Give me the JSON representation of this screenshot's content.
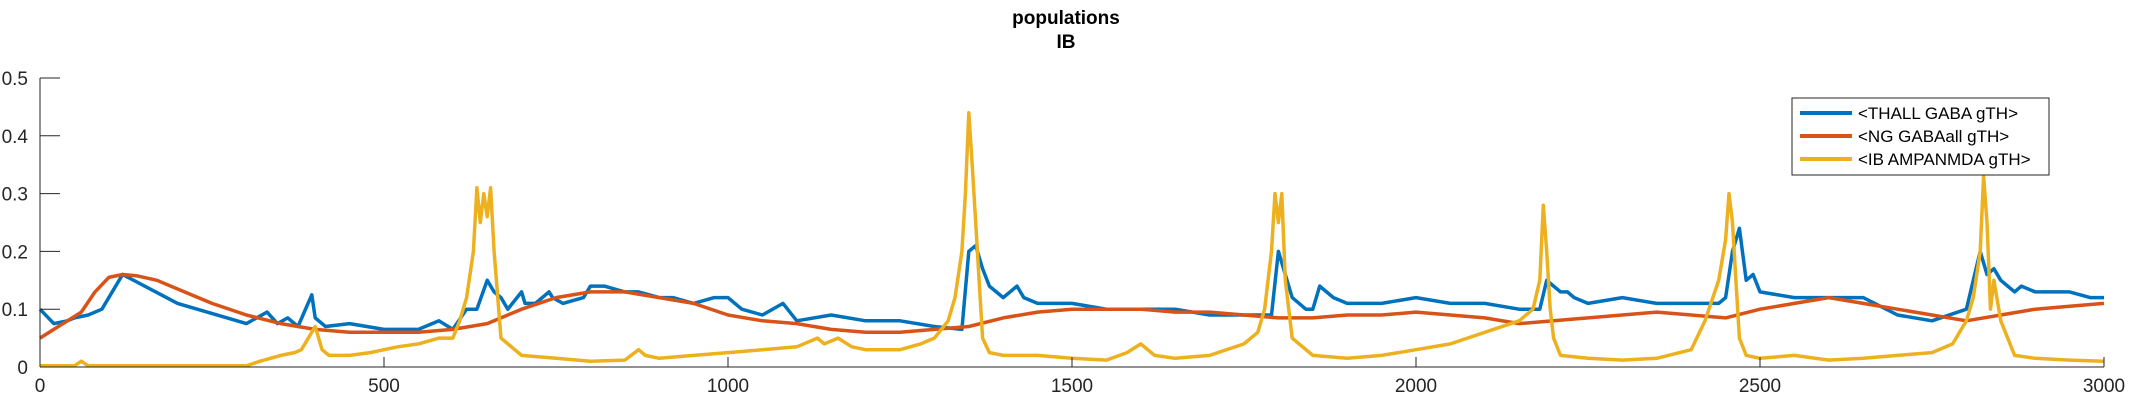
{
  "chart_data": {
    "type": "line",
    "title": "populations",
    "subtitle": "IB",
    "xlabel": "",
    "ylabel": "",
    "xlim": [
      0,
      3000
    ],
    "ylim": [
      0,
      0.5
    ],
    "x_ticks": [
      0,
      500,
      1000,
      1500,
      2000,
      2500,
      3000
    ],
    "y_ticks": [
      0,
      0.1,
      0.2,
      0.3,
      0.4,
      0.5
    ],
    "y_tick_labels": [
      "0",
      "0.1",
      "0.2",
      "0.3",
      "0.4",
      "0.5"
    ],
    "grid": false,
    "legend_position": "top-right",
    "series": [
      {
        "name": "<THALL GABA gTH>",
        "color": "#0072BD",
        "x": [
          0,
          20,
          40,
          50,
          70,
          90,
          120,
          200,
          300,
          330,
          345,
          360,
          375,
          395,
          400,
          415,
          450,
          500,
          550,
          580,
          600,
          620,
          635,
          650,
          660,
          670,
          680,
          700,
          705,
          720,
          740,
          745,
          760,
          790,
          800,
          820,
          850,
          870,
          900,
          920,
          950,
          980,
          1000,
          1020,
          1050,
          1080,
          1100,
          1150,
          1200,
          1250,
          1300,
          1340,
          1350,
          1360,
          1370,
          1380,
          1390,
          1400,
          1410,
          1420,
          1430,
          1450,
          1480,
          1500,
          1550,
          1600,
          1650,
          1700,
          1750,
          1790,
          1800,
          1820,
          1840,
          1850,
          1860,
          1880,
          1900,
          1950,
          2000,
          2050,
          2100,
          2150,
          2170,
          2180,
          2190,
          2200,
          2210,
          2220,
          2230,
          2250,
          2300,
          2350,
          2400,
          2440,
          2450,
          2460,
          2470,
          2480,
          2490,
          2500,
          2550,
          2600,
          2650,
          2700,
          2750,
          2800,
          2810,
          2820,
          2830,
          2840,
          2850,
          2860,
          2870,
          2880,
          2900,
          2950,
          2980,
          3000
        ],
        "y": [
          0.1,
          0.075,
          0.08,
          0.085,
          0.09,
          0.1,
          0.16,
          0.11,
          0.075,
          0.095,
          0.075,
          0.085,
          0.07,
          0.125,
          0.085,
          0.07,
          0.075,
          0.065,
          0.065,
          0.08,
          0.065,
          0.1,
          0.1,
          0.15,
          0.13,
          0.12,
          0.1,
          0.13,
          0.11,
          0.11,
          0.13,
          0.12,
          0.11,
          0.12,
          0.14,
          0.14,
          0.13,
          0.13,
          0.12,
          0.12,
          0.11,
          0.12,
          0.12,
          0.1,
          0.09,
          0.11,
          0.08,
          0.09,
          0.08,
          0.08,
          0.07,
          0.065,
          0.2,
          0.21,
          0.17,
          0.14,
          0.13,
          0.12,
          0.13,
          0.14,
          0.12,
          0.11,
          0.11,
          0.11,
          0.1,
          0.1,
          0.1,
          0.09,
          0.09,
          0.09,
          0.2,
          0.12,
          0.1,
          0.1,
          0.14,
          0.12,
          0.11,
          0.11,
          0.12,
          0.11,
          0.11,
          0.1,
          0.1,
          0.1,
          0.15,
          0.14,
          0.13,
          0.13,
          0.12,
          0.11,
          0.12,
          0.11,
          0.11,
          0.11,
          0.12,
          0.2,
          0.24,
          0.15,
          0.16,
          0.13,
          0.12,
          0.12,
          0.12,
          0.09,
          0.08,
          0.1,
          0.15,
          0.2,
          0.16,
          0.17,
          0.15,
          0.14,
          0.13,
          0.14,
          0.13,
          0.13,
          0.12,
          0.12
        ]
      },
      {
        "name": "<NG GABAall gTH>",
        "color": "#D95319",
        "x": [
          0,
          20,
          40,
          60,
          80,
          100,
          120,
          140,
          170,
          200,
          250,
          300,
          350,
          400,
          450,
          500,
          550,
          600,
          650,
          700,
          750,
          800,
          850,
          900,
          950,
          1000,
          1050,
          1100,
          1150,
          1200,
          1250,
          1300,
          1350,
          1400,
          1450,
          1500,
          1550,
          1600,
          1650,
          1700,
          1750,
          1800,
          1850,
          1900,
          1950,
          2000,
          2050,
          2100,
          2150,
          2200,
          2250,
          2300,
          2350,
          2400,
          2450,
          2500,
          2550,
          2600,
          2650,
          2700,
          2750,
          2800,
          2850,
          2900,
          2950,
          3000
        ],
        "y": [
          0.05,
          0.065,
          0.08,
          0.095,
          0.13,
          0.155,
          0.16,
          0.158,
          0.15,
          0.135,
          0.11,
          0.09,
          0.075,
          0.065,
          0.06,
          0.06,
          0.06,
          0.065,
          0.075,
          0.1,
          0.12,
          0.13,
          0.13,
          0.12,
          0.11,
          0.09,
          0.08,
          0.075,
          0.065,
          0.06,
          0.06,
          0.065,
          0.07,
          0.085,
          0.095,
          0.1,
          0.1,
          0.1,
          0.095,
          0.095,
          0.09,
          0.085,
          0.085,
          0.09,
          0.09,
          0.095,
          0.09,
          0.085,
          0.075,
          0.08,
          0.085,
          0.09,
          0.095,
          0.09,
          0.085,
          0.1,
          0.11,
          0.12,
          0.11,
          0.1,
          0.09,
          0.08,
          0.09,
          0.1,
          0.105,
          0.11
        ]
      },
      {
        "name": "<IB AMPANMDA gTH>",
        "color": "#EDB120",
        "x": [
          0,
          50,
          60,
          70,
          100,
          150,
          200,
          250,
          300,
          320,
          350,
          370,
          380,
          390,
          400,
          410,
          420,
          450,
          480,
          500,
          520,
          550,
          580,
          600,
          610,
          620,
          630,
          635,
          640,
          645,
          650,
          655,
          660,
          670,
          700,
          750,
          800,
          850,
          870,
          880,
          900,
          950,
          1000,
          1050,
          1100,
          1130,
          1140,
          1160,
          1180,
          1200,
          1250,
          1280,
          1300,
          1320,
          1330,
          1340,
          1345,
          1350,
          1355,
          1360,
          1365,
          1370,
          1380,
          1400,
          1450,
          1500,
          1550,
          1580,
          1600,
          1620,
          1650,
          1700,
          1750,
          1770,
          1780,
          1790,
          1795,
          1800,
          1805,
          1810,
          1820,
          1850,
          1900,
          1950,
          2000,
          2050,
          2100,
          2150,
          2170,
          2180,
          2185,
          2190,
          2195,
          2200,
          2210,
          2250,
          2300,
          2350,
          2400,
          2420,
          2440,
          2450,
          2455,
          2460,
          2465,
          2470,
          2480,
          2500,
          2550,
          2600,
          2650,
          2700,
          2750,
          2780,
          2800,
          2810,
          2820,
          2825,
          2830,
          2835,
          2840,
          2850,
          2870,
          2900,
          2950,
          3000
        ],
        "y": [
          0.002,
          0.002,
          0.01,
          0.002,
          0.002,
          0.002,
          0.002,
          0.002,
          0.002,
          0.01,
          0.02,
          0.025,
          0.03,
          0.05,
          0.07,
          0.03,
          0.02,
          0.02,
          0.025,
          0.03,
          0.035,
          0.04,
          0.05,
          0.05,
          0.08,
          0.12,
          0.2,
          0.31,
          0.25,
          0.3,
          0.26,
          0.31,
          0.2,
          0.05,
          0.02,
          0.015,
          0.01,
          0.012,
          0.03,
          0.02,
          0.015,
          0.02,
          0.025,
          0.03,
          0.035,
          0.05,
          0.04,
          0.05,
          0.035,
          0.03,
          0.03,
          0.04,
          0.05,
          0.08,
          0.12,
          0.2,
          0.3,
          0.44,
          0.35,
          0.25,
          0.15,
          0.05,
          0.025,
          0.02,
          0.02,
          0.015,
          0.012,
          0.025,
          0.04,
          0.02,
          0.015,
          0.02,
          0.04,
          0.06,
          0.1,
          0.2,
          0.3,
          0.25,
          0.3,
          0.15,
          0.05,
          0.02,
          0.015,
          0.02,
          0.03,
          0.04,
          0.06,
          0.08,
          0.1,
          0.15,
          0.28,
          0.2,
          0.1,
          0.05,
          0.02,
          0.015,
          0.012,
          0.015,
          0.03,
          0.08,
          0.15,
          0.22,
          0.3,
          0.25,
          0.15,
          0.05,
          0.02,
          0.015,
          0.02,
          0.012,
          0.015,
          0.02,
          0.025,
          0.04,
          0.08,
          0.12,
          0.2,
          0.33,
          0.25,
          0.1,
          0.15,
          0.08,
          0.02,
          0.015,
          0.012,
          0.01
        ]
      }
    ]
  }
}
